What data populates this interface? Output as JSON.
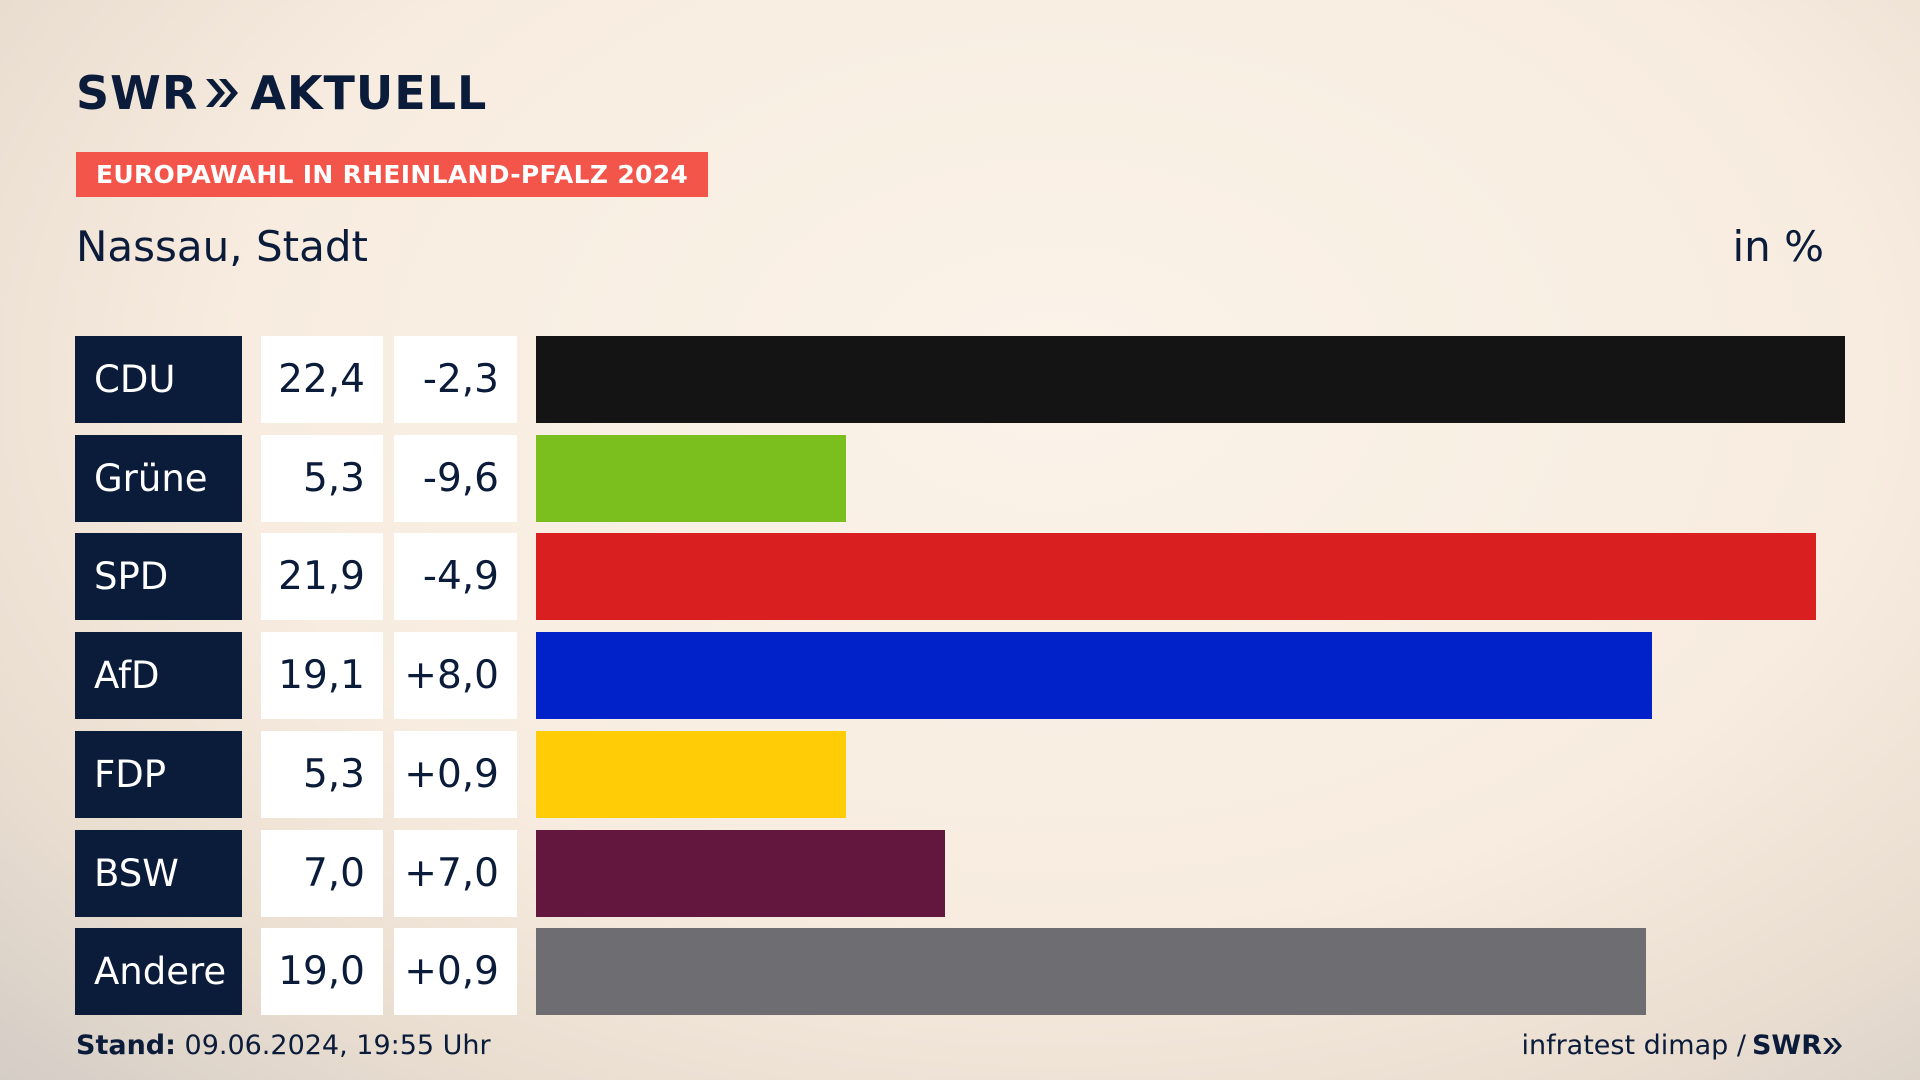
{
  "header": {
    "logo_text": "SWR",
    "logo_suffix": "AKTUELL",
    "banner": "EUROPAWAHL IN RHEINLAND-PFALZ 2024",
    "place": "Nassau, Stadt",
    "unit": "in %"
  },
  "colors": {
    "navy": "#0b1b3a",
    "banner": "#f4554a"
  },
  "chart_data": {
    "type": "bar",
    "orientation": "horizontal",
    "categories": [
      "CDU",
      "Grüne",
      "SPD",
      "AfD",
      "FDP",
      "BSW",
      "Andere"
    ],
    "values": [
      22.4,
      5.3,
      21.9,
      19.1,
      5.3,
      7.0,
      19.0
    ],
    "value_labels": [
      "22,4",
      "5,3",
      "21,9",
      "19,1",
      "5,3",
      "7,0",
      "19,0"
    ],
    "diff_labels": [
      "-2,3",
      "-9,6",
      "-4,9",
      "+8,0",
      "+0,9",
      "+7,0",
      "+0,9"
    ],
    "colors": [
      "#141414",
      "#7abf1e",
      "#d91f1f",
      "#0022c8",
      "#ffcc05",
      "#64173e",
      "#6e6e72"
    ],
    "xlim": [
      0,
      22.4
    ]
  },
  "footer": {
    "stand_label": "Stand:",
    "stand_value": "09.06.2024, 19:55 Uhr",
    "source": "infratest dimap /",
    "source_logo": "SWR"
  }
}
